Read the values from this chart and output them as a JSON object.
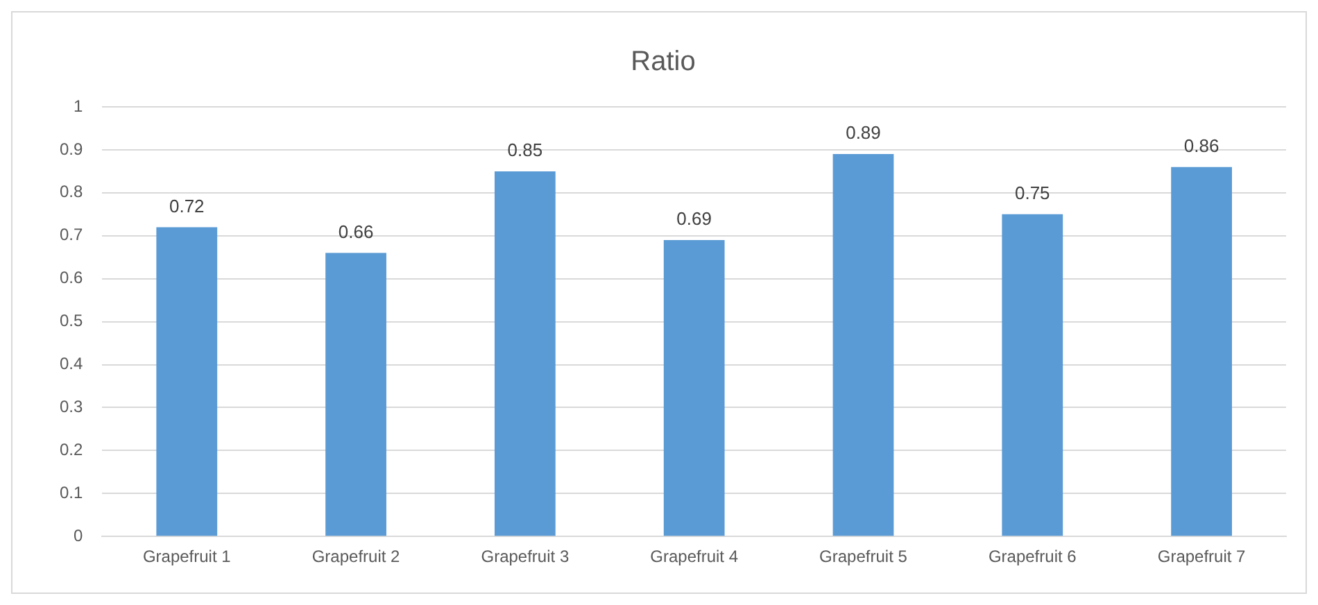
{
  "chart_data": {
    "type": "bar",
    "title": "Ratio",
    "categories": [
      "Grapefruit 1",
      "Grapefruit 2",
      "Grapefruit 3",
      "Grapefruit 4",
      "Grapefruit 5",
      "Grapefruit 6",
      "Grapefruit 7"
    ],
    "values": [
      0.72,
      0.66,
      0.85,
      0.69,
      0.89,
      0.75,
      0.86
    ],
    "color": "#5b9bd5",
    "ylim": [
      0,
      1
    ],
    "yticks": [
      0,
      0.1,
      0.2,
      0.3,
      0.4,
      0.5,
      0.6,
      0.7,
      0.8,
      0.9,
      1
    ],
    "grid": "y",
    "data_labels": true,
    "legend": false
  }
}
